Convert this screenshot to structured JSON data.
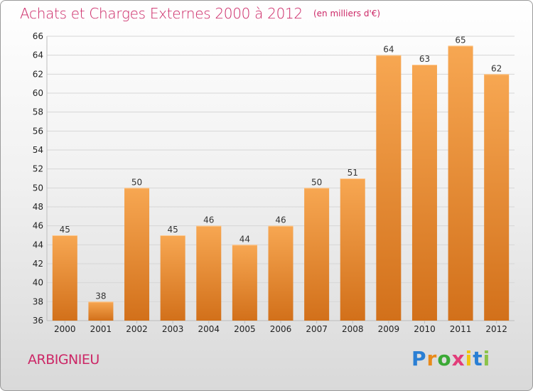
{
  "header": {
    "title": "Achats et Charges Externes 2000 à 2012",
    "unit": "(en milliers d'€)"
  },
  "commune": "ARBIGNIEU",
  "logo": {
    "letters": [
      "P",
      "r",
      "o",
      "x",
      "i",
      "t",
      "i"
    ],
    "colors": [
      "#2a7fd4",
      "#e88a1a",
      "#3aa935",
      "#e23d7a",
      "#f1c40f",
      "#2a7fd4",
      "#8bc34a"
    ]
  },
  "colors": {
    "bar_light": "#f7a752",
    "bar_dark": "#d2701a",
    "grid": "#d6d6d6",
    "text_accent": "#cc2766"
  },
  "chart_data": {
    "type": "bar",
    "title": "Achats et Charges Externes 2000 à 2012",
    "subtitle": "(en milliers d'€)",
    "categories": [
      "2000",
      "2001",
      "2002",
      "2003",
      "2004",
      "2005",
      "2006",
      "2007",
      "2008",
      "2009",
      "2010",
      "2011",
      "2012"
    ],
    "values": [
      45,
      38,
      50,
      45,
      46,
      44,
      46,
      50,
      51,
      64,
      63,
      65,
      62
    ],
    "ylim": [
      36,
      66
    ],
    "yticks": [
      36,
      38,
      40,
      42,
      44,
      46,
      48,
      50,
      52,
      54,
      56,
      58,
      60,
      62,
      64,
      66
    ],
    "grid": true,
    "xlabel": "",
    "ylabel": ""
  }
}
